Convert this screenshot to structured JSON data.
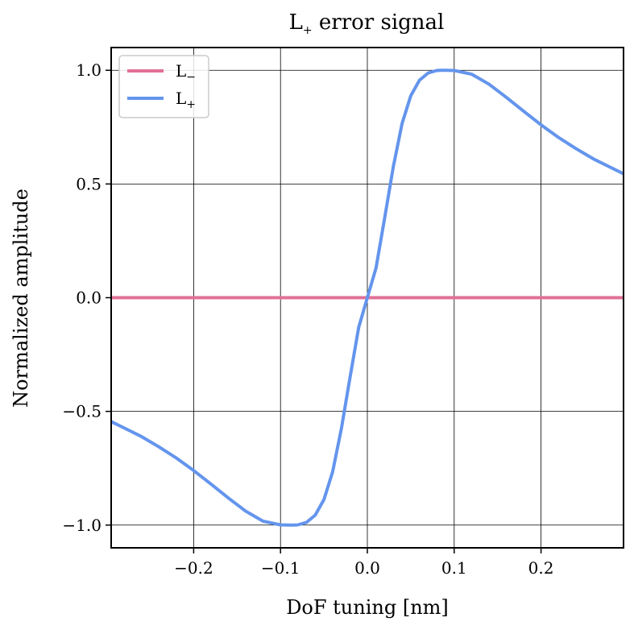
{
  "chart_data": {
    "type": "line",
    "title": {
      "main": "L",
      "sub": "+",
      "rest": " error signal"
    },
    "xlabel": "DoF tuning [nm]",
    "ylabel": "Normalized amplitude",
    "xlim": [
      -0.295,
      0.295
    ],
    "ylim": [
      -1.1,
      1.1
    ],
    "xticks": [
      -0.2,
      -0.1,
      0.0,
      0.1,
      0.2
    ],
    "xtick_labels": [
      "−0.2",
      "−0.1",
      "0.0",
      "0.1",
      "0.2"
    ],
    "yticks": [
      -1.0,
      -0.5,
      0.0,
      0.5,
      1.0
    ],
    "ytick_labels": [
      "−1.0",
      "−0.5",
      "0.0",
      "0.5",
      "1.0"
    ],
    "grid": true,
    "legend_position": "top-left",
    "series": [
      {
        "name": "L−",
        "legend": {
          "main": "L",
          "sub": "−"
        },
        "color": "#e07098",
        "x": [
          -0.295,
          0.295
        ],
        "y": [
          0.0,
          0.0
        ]
      },
      {
        "name": "L+",
        "legend": {
          "main": "L",
          "sub": "+"
        },
        "color": "#6495ed",
        "x": [
          -0.295,
          -0.28,
          -0.26,
          -0.24,
          -0.22,
          -0.2,
          -0.18,
          -0.16,
          -0.14,
          -0.12,
          -0.1,
          -0.09,
          -0.085,
          -0.08,
          -0.07,
          -0.06,
          -0.05,
          -0.04,
          -0.03,
          -0.02,
          -0.01,
          0.0,
          0.01,
          0.02,
          0.03,
          0.04,
          0.05,
          0.06,
          0.07,
          0.08,
          0.085,
          0.09,
          0.1,
          0.12,
          0.14,
          0.16,
          0.18,
          0.2,
          0.22,
          0.24,
          0.26,
          0.28,
          0.295
        ],
        "y": [
          -0.545,
          -0.573,
          -0.611,
          -0.656,
          -0.705,
          -0.76,
          -0.82,
          -0.881,
          -0.939,
          -0.983,
          -0.999,
          -1.0,
          -1.0,
          -0.999,
          -0.988,
          -0.956,
          -0.888,
          -0.766,
          -0.578,
          -0.352,
          -0.131,
          0.0,
          0.131,
          0.352,
          0.578,
          0.766,
          0.888,
          0.956,
          0.988,
          0.999,
          1.0,
          1.0,
          0.999,
          0.983,
          0.939,
          0.881,
          0.82,
          0.76,
          0.705,
          0.656,
          0.611,
          0.573,
          0.545
        ]
      }
    ]
  }
}
